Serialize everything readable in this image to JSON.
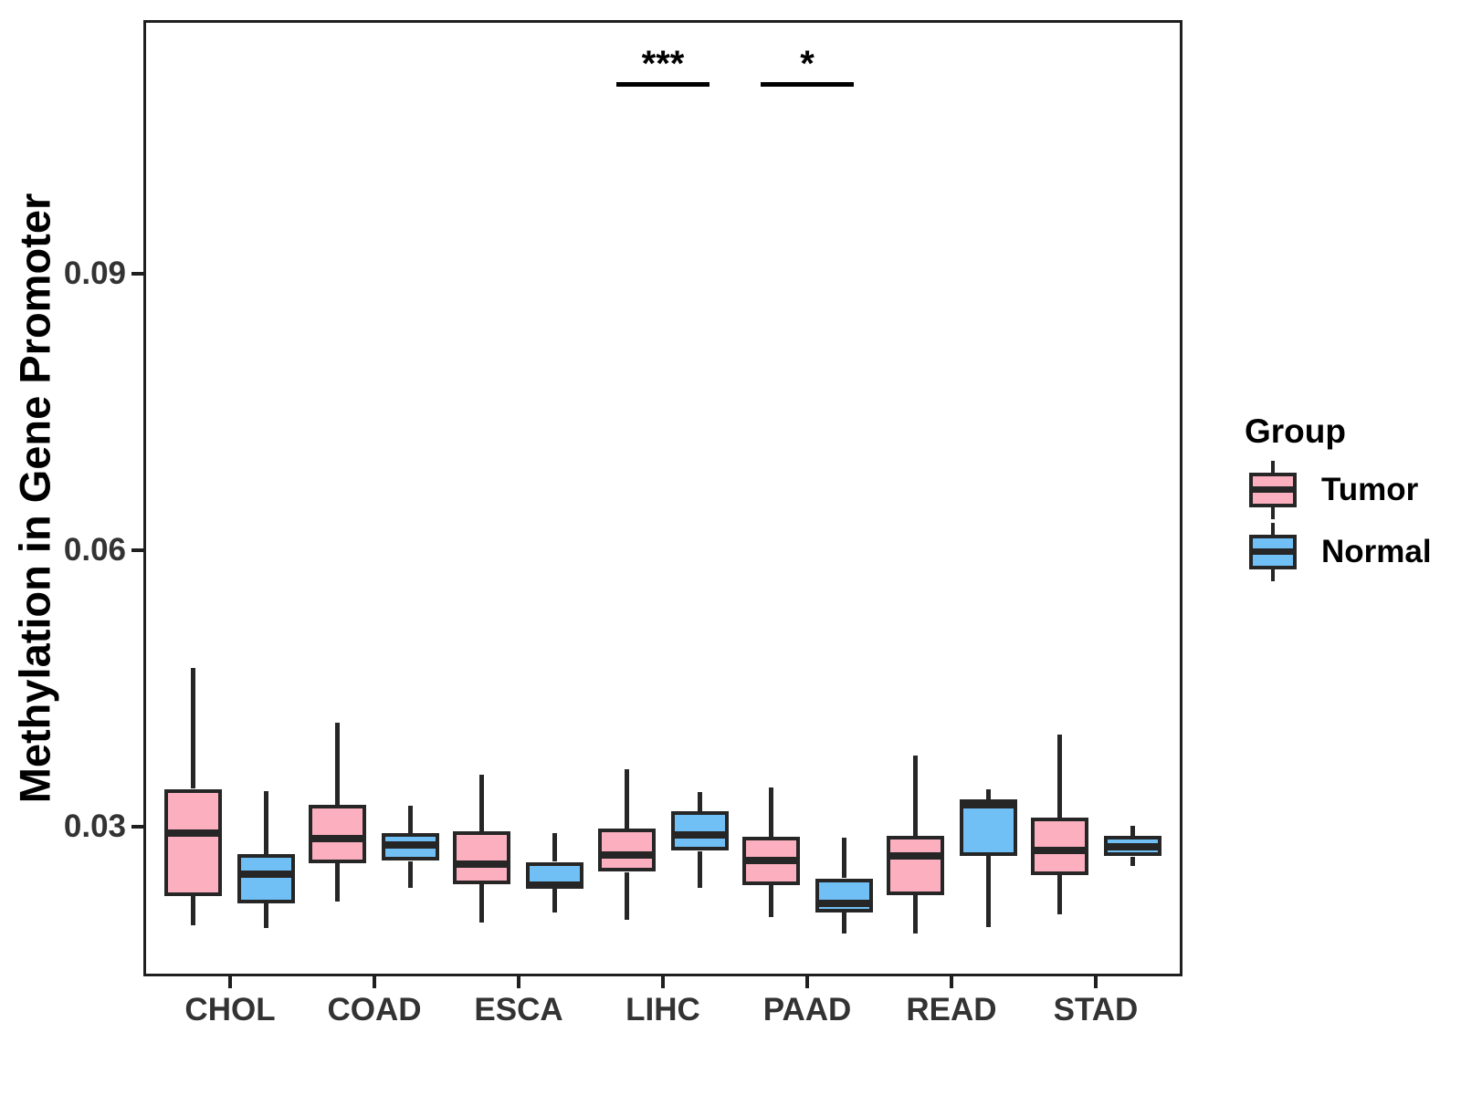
{
  "figure": {
    "background": "#FFFFFF"
  },
  "chart_data": {
    "type": "boxplot",
    "title": "",
    "xlabel": "",
    "ylabel": "Methylation in Gene Promoter",
    "categories": [
      "CHOL",
      "COAD",
      "ESCA",
      "LIHC",
      "PAAD",
      "READ",
      "STAD"
    ],
    "y_ticks": [
      0.03,
      0.06,
      0.09
    ],
    "y_tick_labels": [
      "0.03",
      "0.06",
      "0.09"
    ],
    "ylim": [
      0.0138,
      0.1175
    ],
    "grid": "off",
    "colors": {
      "Tumor": "#FBAFBF",
      "Normal": "#70BFF5",
      "stroke": "#262626"
    },
    "legend": {
      "title": "Group",
      "position": "right",
      "entries": [
        "Tumor",
        "Normal"
      ]
    },
    "series": [
      {
        "name": "Tumor",
        "boxes": [
          {
            "category": "CHOL",
            "whisker_low": 0.0193,
            "q1": 0.0225,
            "median": 0.0293,
            "q3": 0.0341,
            "whisker_high": 0.0472
          },
          {
            "category": "COAD",
            "whisker_low": 0.0219,
            "q1": 0.0261,
            "median": 0.0287,
            "q3": 0.0324,
            "whisker_high": 0.0413
          },
          {
            "category": "ESCA",
            "whisker_low": 0.0196,
            "q1": 0.0238,
            "median": 0.026,
            "q3": 0.0295,
            "whisker_high": 0.0357
          },
          {
            "category": "LIHC",
            "whisker_low": 0.02,
            "q1": 0.0251,
            "median": 0.027,
            "q3": 0.0298,
            "whisker_high": 0.0363
          },
          {
            "category": "PAAD",
            "whisker_low": 0.0202,
            "q1": 0.0237,
            "median": 0.0264,
            "q3": 0.0289,
            "whisker_high": 0.0343
          },
          {
            "category": "READ",
            "whisker_low": 0.0184,
            "q1": 0.0226,
            "median": 0.0269,
            "q3": 0.029,
            "whisker_high": 0.0377
          },
          {
            "category": "STAD",
            "whisker_low": 0.0205,
            "q1": 0.0248,
            "median": 0.0275,
            "q3": 0.031,
            "whisker_high": 0.04
          }
        ]
      },
      {
        "name": "Normal",
        "boxes": [
          {
            "category": "CHOL",
            "whisker_low": 0.019,
            "q1": 0.0218,
            "median": 0.0249,
            "q3": 0.0271,
            "whisker_high": 0.0339
          },
          {
            "category": "COAD",
            "whisker_low": 0.0234,
            "q1": 0.0263,
            "median": 0.028,
            "q3": 0.0293,
            "whisker_high": 0.0323
          },
          {
            "category": "ESCA",
            "whisker_low": 0.0207,
            "q1": 0.0234,
            "median": 0.0237,
            "q3": 0.0262,
            "whisker_high": 0.0293
          },
          {
            "category": "LIHC",
            "whisker_low": 0.0234,
            "q1": 0.0274,
            "median": 0.0291,
            "q3": 0.0317,
            "whisker_high": 0.0338
          },
          {
            "category": "PAAD",
            "whisker_low": 0.0184,
            "q1": 0.0207,
            "median": 0.0217,
            "q3": 0.0244,
            "whisker_high": 0.0288
          },
          {
            "category": "READ",
            "whisker_low": 0.0192,
            "q1": 0.0269,
            "median": 0.0324,
            "q3": 0.033,
            "whisker_high": 0.0341
          },
          {
            "category": "STAD",
            "whisker_low": 0.0258,
            "q1": 0.0268,
            "median": 0.0279,
            "q3": 0.029,
            "whisker_high": 0.0301
          }
        ]
      }
    ],
    "significance": [
      {
        "category": "LIHC",
        "label": "***"
      },
      {
        "category": "PAAD",
        "label": "*"
      }
    ]
  }
}
